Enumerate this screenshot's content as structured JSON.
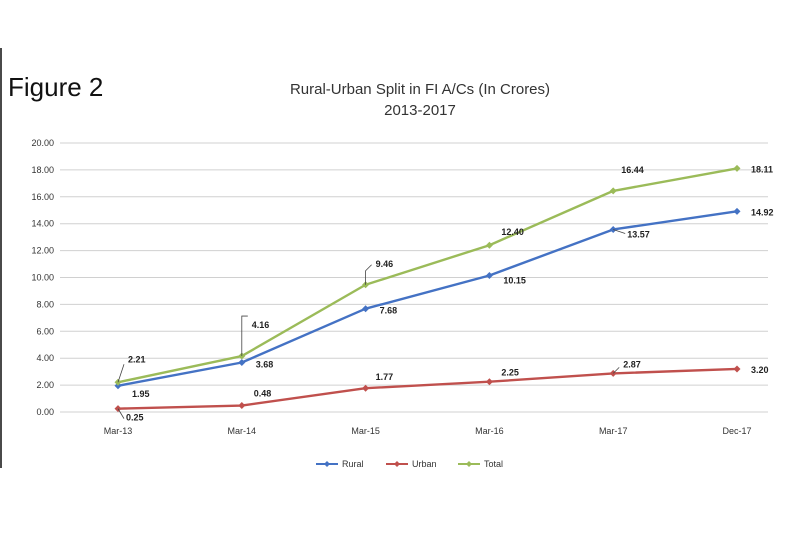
{
  "figure_label": "Figure 2",
  "chart_data": {
    "type": "line",
    "title": "Rural-Urban Split in FI A/Cs (In Crores)",
    "subtitle": "2013-2017",
    "xlabel": "",
    "ylabel": "",
    "ylim": [
      0,
      20
    ],
    "y_ticks": [
      "0.00",
      "2.00",
      "4.00",
      "6.00",
      "8.00",
      "10.00",
      "12.00",
      "14.00",
      "16.00",
      "18.00",
      "20.00"
    ],
    "categories": [
      "Mar-13",
      "Mar-14",
      "Mar-15",
      "Mar-16",
      "Mar-17",
      "Dec-17"
    ],
    "grid": true,
    "legend_position": "bottom",
    "series": [
      {
        "name": "Rural",
        "color": "#4472C4",
        "values": [
          1.95,
          3.68,
          7.68,
          10.15,
          13.57,
          14.92
        ],
        "labels": [
          "1.95",
          "3.68",
          "7.68",
          "10.15",
          "13.57",
          "14.92"
        ]
      },
      {
        "name": "Urban",
        "color": "#C0504D",
        "values": [
          0.25,
          0.48,
          1.77,
          2.25,
          2.87,
          3.2
        ],
        "labels": [
          "0.25",
          "0.48",
          "1.77",
          "2.25",
          "2.87",
          "3.20"
        ]
      },
      {
        "name": "Total",
        "color": "#9BBB59",
        "values": [
          2.21,
          4.16,
          9.46,
          12.4,
          16.44,
          18.11
        ],
        "labels": [
          "2.21",
          "4.16",
          "9.46",
          "12.40",
          "16.44",
          "18.11"
        ]
      }
    ]
  }
}
